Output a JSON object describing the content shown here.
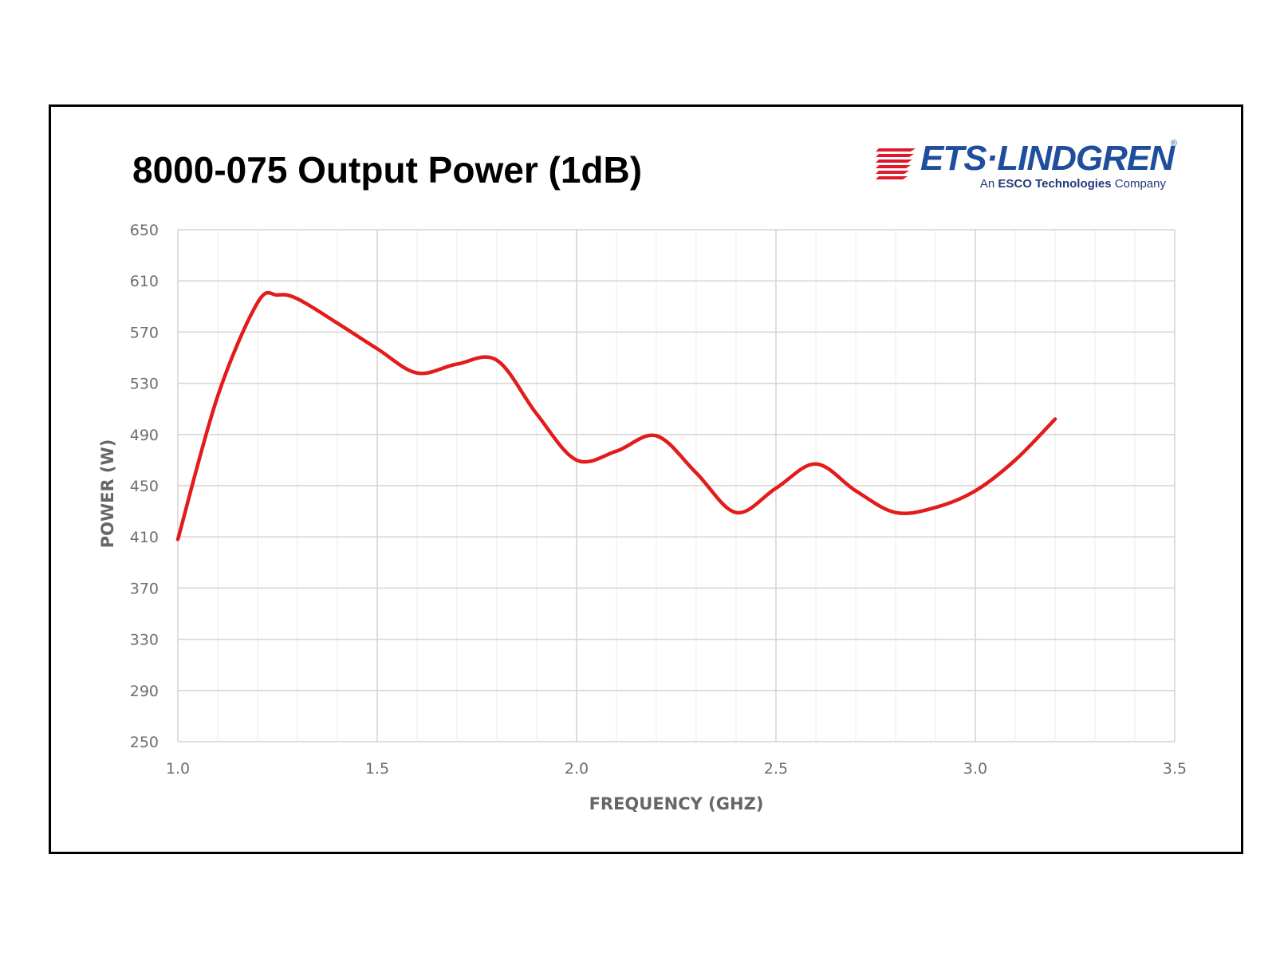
{
  "page": {
    "title": "8000-075 Output Power (1dB)"
  },
  "logo": {
    "wordmark": "ETS·LINDGREN",
    "registered": "®",
    "tagline_prefix": "An",
    "tagline_bold": "ESCO Technologies",
    "tagline_suffix": "Company",
    "colors": {
      "brand_blue": "#1f4e9c",
      "brand_red": "#e0182b"
    }
  },
  "chart_data": {
    "type": "line",
    "title": "8000-075 Output Power (1dB)",
    "xlabel": "FREQUENCY (GHZ)",
    "ylabel": "POWER (W)",
    "xlim": [
      1.0,
      3.5
    ],
    "ylim": [
      250,
      650
    ],
    "x_ticks": [
      "1.0",
      "1.5",
      "2.0",
      "2.5",
      "3.0",
      "3.5"
    ],
    "y_ticks": [
      "650",
      "610",
      "570",
      "530",
      "490",
      "450",
      "410",
      "370",
      "330",
      "290",
      "250"
    ],
    "grid": true,
    "legend": "none",
    "series": [
      {
        "color": "#e31b1b",
        "x": [
          1.0,
          1.1,
          1.2,
          1.25,
          1.3,
          1.4,
          1.5,
          1.6,
          1.7,
          1.8,
          1.9,
          2.0,
          2.1,
          2.2,
          2.3,
          2.4,
          2.5,
          2.6,
          2.7,
          2.8,
          2.9,
          3.0,
          3.1,
          3.2
        ],
        "values": [
          408,
          520,
          593,
          599,
          596,
          577,
          557,
          538,
          545,
          548,
          506,
          470,
          477,
          489,
          460,
          429,
          448,
          467,
          446,
          429,
          433,
          446,
          470,
          502
        ]
      }
    ]
  }
}
